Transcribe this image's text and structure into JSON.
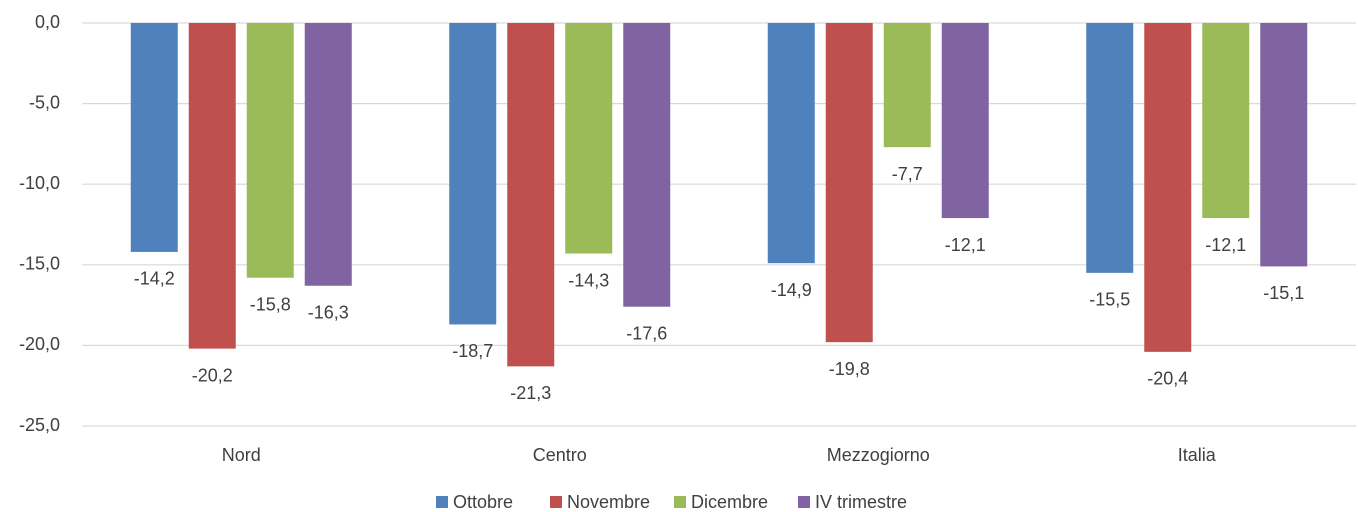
{
  "chart_data": {
    "type": "bar",
    "categories": [
      "Nord",
      "Centro",
      "Mezzogiorno",
      "Italia"
    ],
    "series": [
      {
        "name": "Ottobre",
        "color": "#4f81bd",
        "values": [
          -14.2,
          -18.7,
          -14.9,
          -15.5
        ],
        "value_labels": [
          "-14,2",
          "-18,7",
          "-14,9",
          "-15,5"
        ]
      },
      {
        "name": "Novembre",
        "color": "#c0504d",
        "values": [
          -20.2,
          -21.3,
          -19.8,
          -20.4
        ],
        "value_labels": [
          "-20,2",
          "-21,3",
          "-19,8",
          "-20,4"
        ]
      },
      {
        "name": "Dicembre",
        "color": "#9bbb59",
        "values": [
          -15.8,
          -14.3,
          -7.7,
          -12.1
        ],
        "value_labels": [
          "-15,8",
          "-14,3",
          "-7,7",
          "-12,1"
        ]
      },
      {
        "name": "IV trimestre",
        "color": "#8064a2",
        "values": [
          -16.3,
          -17.6,
          -12.1,
          -15.1
        ],
        "value_labels": [
          "-16,3",
          "-17,6",
          "-12,1",
          "-15,1"
        ]
      }
    ],
    "ylim": [
      -25,
      0
    ],
    "yticks": [
      {
        "value": 0,
        "label": "0,0"
      },
      {
        "value": -5,
        "label": "-5,0"
      },
      {
        "value": -10,
        "label": "-10,0"
      },
      {
        "value": -15,
        "label": "-15,0"
      },
      {
        "value": -20,
        "label": "-20,0"
      },
      {
        "value": -25,
        "label": "-25,0"
      }
    ],
    "grid": true,
    "legend": "bottom"
  }
}
